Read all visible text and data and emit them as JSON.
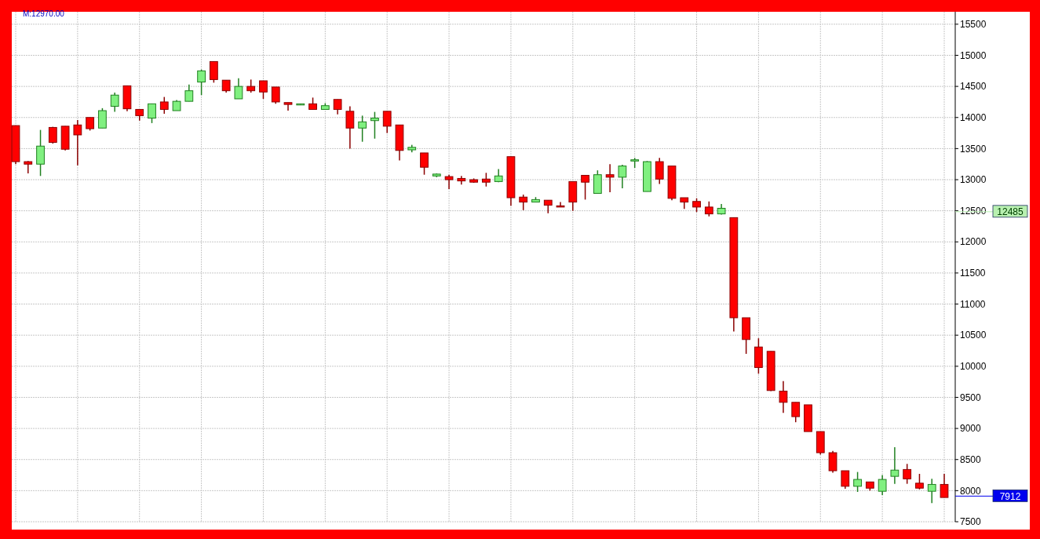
{
  "chart_data": {
    "type": "candlestick",
    "categories": [
      null,
      null,
      null,
      null,
      null,
      null,
      null,
      null,
      null,
      null,
      null,
      null,
      null,
      null,
      null,
      null,
      null,
      null,
      null,
      null,
      null,
      null,
      null,
      null,
      null,
      null,
      null,
      null,
      null,
      null,
      null,
      null,
      null,
      null,
      null,
      null,
      null,
      null,
      null,
      null,
      null,
      null,
      null,
      null,
      null,
      null,
      null,
      null,
      null,
      null,
      null,
      null,
      null,
      null,
      null,
      null,
      null,
      null,
      null,
      null,
      null,
      null,
      null,
      null,
      null,
      null,
      null,
      null,
      null,
      null,
      null,
      null,
      null,
      null,
      null,
      null
    ],
    "ohlc": [
      [
        13870,
        13870,
        13250,
        13290
      ],
      [
        13290,
        13300,
        13100,
        13250
      ],
      [
        13250,
        13800,
        13060,
        13540
      ],
      [
        13840,
        13850,
        13580,
        13600
      ],
      [
        13860,
        13860,
        13470,
        13490
      ],
      [
        13880,
        13960,
        13230,
        13720
      ],
      [
        14000,
        14000,
        13790,
        13820
      ],
      [
        13830,
        14150,
        13830,
        14110
      ],
      [
        14180,
        14400,
        14090,
        14360
      ],
      [
        14510,
        14510,
        14100,
        14140
      ],
      [
        14130,
        14130,
        13950,
        14030
      ],
      [
        13990,
        14220,
        13910,
        14220
      ],
      [
        14250,
        14330,
        14060,
        14130
      ],
      [
        14110,
        14280,
        14110,
        14260
      ],
      [
        14260,
        14530,
        14260,
        14430
      ],
      [
        14570,
        14770,
        14360,
        14750
      ],
      [
        14900,
        14900,
        14560,
        14610
      ],
      [
        14600,
        14600,
        14400,
        14430
      ],
      [
        14300,
        14630,
        14300,
        14500
      ],
      [
        14500,
        14610,
        14400,
        14430
      ],
      [
        14590,
        14590,
        14300,
        14410
      ],
      [
        14490,
        14490,
        14220,
        14250
      ],
      [
        14240,
        14240,
        14110,
        14210
      ],
      [
        14210,
        14220,
        14200,
        14220
      ],
      [
        14220,
        14320,
        14130,
        14130
      ],
      [
        14130,
        14230,
        14130,
        14190
      ],
      [
        14290,
        14290,
        14050,
        14130
      ],
      [
        14100,
        14180,
        13500,
        13830
      ],
      [
        13830,
        14030,
        13610,
        13930
      ],
      [
        13950,
        14090,
        13660,
        13990
      ],
      [
        14100,
        14100,
        13750,
        13860
      ],
      [
        13880,
        13880,
        13310,
        13470
      ],
      [
        13480,
        13560,
        13440,
        13520
      ],
      [
        13430,
        13430,
        13080,
        13200
      ],
      [
        13060,
        13100,
        13040,
        13090
      ],
      [
        13050,
        13080,
        12850,
        13000
      ],
      [
        13020,
        13060,
        12920,
        12980
      ],
      [
        13000,
        13020,
        12950,
        12960
      ],
      [
        13010,
        13110,
        12890,
        12960
      ],
      [
        12970,
        13170,
        12960,
        13060
      ],
      [
        13370,
        13370,
        12580,
        12710
      ],
      [
        12720,
        12760,
        12510,
        12640
      ],
      [
        12640,
        12720,
        12640,
        12680
      ],
      [
        12670,
        12670,
        12460,
        12590
      ],
      [
        12580,
        12640,
        12560,
        12560
      ],
      [
        12970,
        12970,
        12500,
        12640
      ],
      [
        13070,
        13070,
        12680,
        12960
      ],
      [
        12780,
        13150,
        12780,
        13080
      ],
      [
        13080,
        13250,
        12800,
        13040
      ],
      [
        13040,
        13240,
        12860,
        13220
      ],
      [
        13300,
        13350,
        13190,
        13320
      ],
      [
        12810,
        13300,
        12810,
        13290
      ],
      [
        13290,
        13350,
        12930,
        13010
      ],
      [
        13220,
        13220,
        12670,
        12700
      ],
      [
        12710,
        12710,
        12530,
        12640
      ],
      [
        12650,
        12700,
        12480,
        12560
      ],
      [
        12560,
        12650,
        12410,
        12450
      ],
      [
        12450,
        12610,
        12440,
        12540
      ],
      [
        12390,
        12390,
        10560,
        10780
      ],
      [
        10780,
        10780,
        10200,
        10430
      ],
      [
        10310,
        10450,
        9880,
        9980
      ],
      [
        10240,
        10240,
        9600,
        9610
      ],
      [
        9600,
        9760,
        9250,
        9420
      ],
      [
        9420,
        9420,
        9100,
        9190
      ],
      [
        9380,
        9380,
        8950,
        8950
      ],
      [
        8950,
        8950,
        8580,
        8610
      ],
      [
        8610,
        8640,
        8290,
        8320
      ],
      [
        8320,
        8320,
        8030,
        8070
      ],
      [
        8070,
        8300,
        7980,
        8180
      ],
      [
        8140,
        8140,
        8000,
        8040
      ],
      [
        7990,
        8250,
        7930,
        8180
      ],
      [
        8230,
        8700,
        8110,
        8330
      ],
      [
        8340,
        8430,
        8110,
        8190
      ],
      [
        8120,
        8270,
        8020,
        8040
      ],
      [
        7990,
        8190,
        7800,
        8100
      ],
      [
        8100,
        8270,
        7890,
        7890
      ]
    ],
    "ylim": [
      7500,
      15700
    ],
    "yticks": [
      7500,
      8000,
      8500,
      9000,
      9500,
      10000,
      10500,
      11000,
      11500,
      12000,
      12500,
      13000,
      13500,
      14000,
      14500,
      15000,
      15500
    ],
    "grid": true,
    "annotations": [
      "M:12970.00"
    ],
    "ref_lines": [
      {
        "axis": "y",
        "value": 12485,
        "label": "12485",
        "color": "#b8f0b0"
      },
      {
        "axis": "y",
        "value": 7912,
        "label": "7912",
        "color": "#0000ee"
      }
    ]
  }
}
